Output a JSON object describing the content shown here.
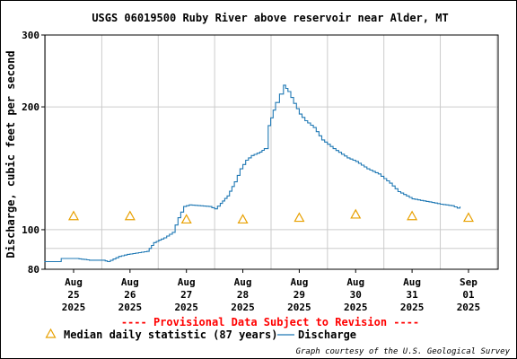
{
  "chart_data": {
    "type": "line",
    "title": "USGS 06019500 Ruby River above reservoir near Alder, MT",
    "ylabel": "Discharge, cubic feet per second",
    "xlabel": "",
    "y_scale": "log",
    "ylim": [
      80,
      300
    ],
    "y_ticks": [
      80,
      100,
      200,
      300
    ],
    "y_tick_labels": [
      "80",
      "100",
      "200",
      "300"
    ],
    "x_ticks": [
      {
        "label": [
          "Aug",
          "25",
          "2025"
        ],
        "day": 0
      },
      {
        "label": [
          "Aug",
          "26",
          "2025"
        ],
        "day": 1
      },
      {
        "label": [
          "Aug",
          "27",
          "2025"
        ],
        "day": 2
      },
      {
        "label": [
          "Aug",
          "28",
          "2025"
        ],
        "day": 3
      },
      {
        "label": [
          "Aug",
          "29",
          "2025"
        ],
        "day": 4
      },
      {
        "label": [
          "Aug",
          "30",
          "2025"
        ],
        "day": 5
      },
      {
        "label": [
          "Aug",
          "31",
          "2025"
        ],
        "day": 6
      },
      {
        "label": [
          "Sep",
          "01",
          "2025"
        ],
        "day": 7
      }
    ],
    "grid": true,
    "series": [
      {
        "name": "Discharge",
        "color": "#1f78b4",
        "style": "line",
        "points": [
          [
            -0.52,
            83.5
          ],
          [
            -0.28,
            83.5
          ],
          [
            -0.22,
            85.0
          ],
          [
            0.05,
            85.0
          ],
          [
            0.28,
            84.2
          ],
          [
            0.52,
            84.2
          ],
          [
            0.6,
            83.5
          ],
          [
            0.8,
            86.0
          ],
          [
            0.95,
            87.0
          ],
          [
            1.3,
            88.5
          ],
          [
            1.42,
            93.0
          ],
          [
            1.6,
            95.5
          ],
          [
            1.75,
            98.5
          ],
          [
            1.85,
            107.0
          ],
          [
            1.95,
            114.0
          ],
          [
            2.05,
            115.0
          ],
          [
            2.4,
            114.0
          ],
          [
            2.5,
            112.5
          ],
          [
            2.6,
            116.0
          ],
          [
            2.72,
            121.0
          ],
          [
            2.85,
            131.0
          ],
          [
            2.95,
            141.0
          ],
          [
            3.05,
            148.0
          ],
          [
            3.15,
            152.0
          ],
          [
            3.3,
            155.0
          ],
          [
            3.38,
            158.0
          ],
          [
            3.45,
            180.0
          ],
          [
            3.58,
            205.0
          ],
          [
            3.65,
            215.0
          ],
          [
            3.72,
            226.0
          ],
          [
            3.8,
            218.0
          ],
          [
            3.9,
            204.0
          ],
          [
            4.0,
            192.0
          ],
          [
            4.1,
            185.0
          ],
          [
            4.25,
            178.0
          ],
          [
            4.4,
            166.0
          ],
          [
            4.6,
            158.0
          ],
          [
            4.85,
            150.0
          ],
          [
            5.0,
            147.0
          ],
          [
            5.2,
            141.0
          ],
          [
            5.4,
            137.0
          ],
          [
            5.6,
            130.0
          ],
          [
            5.75,
            124.0
          ],
          [
            6.0,
            119.0
          ],
          [
            6.3,
            117.0
          ],
          [
            6.5,
            115.5
          ],
          [
            6.7,
            114.5
          ],
          [
            6.8,
            113.0
          ],
          [
            6.85,
            114.0
          ]
        ]
      },
      {
        "name": "Median daily statistic (87 years)",
        "color": "#e8a000",
        "style": "marker-triangle",
        "points": [
          [
            0,
            108
          ],
          [
            1,
            108
          ],
          [
            2,
            106
          ],
          [
            3,
            106
          ],
          [
            4,
            107
          ],
          [
            5,
            109
          ],
          [
            6,
            108
          ],
          [
            7,
            107
          ]
        ]
      }
    ],
    "notice": "---- Provisional Data Subject to Revision ----",
    "legend": [
      {
        "label": "Median daily statistic (87 years)",
        "symbol": "triangle",
        "color": "#e8a000"
      },
      {
        "label": "Discharge",
        "symbol": "line",
        "color": "#1f78b4"
      }
    ],
    "legend_position": "bottom",
    "credit": "Graph courtesy of the U.S. Geological Survey",
    "colors": {
      "grid": "#cccccc",
      "axis": "#000000",
      "notice": "#ff0000"
    }
  }
}
